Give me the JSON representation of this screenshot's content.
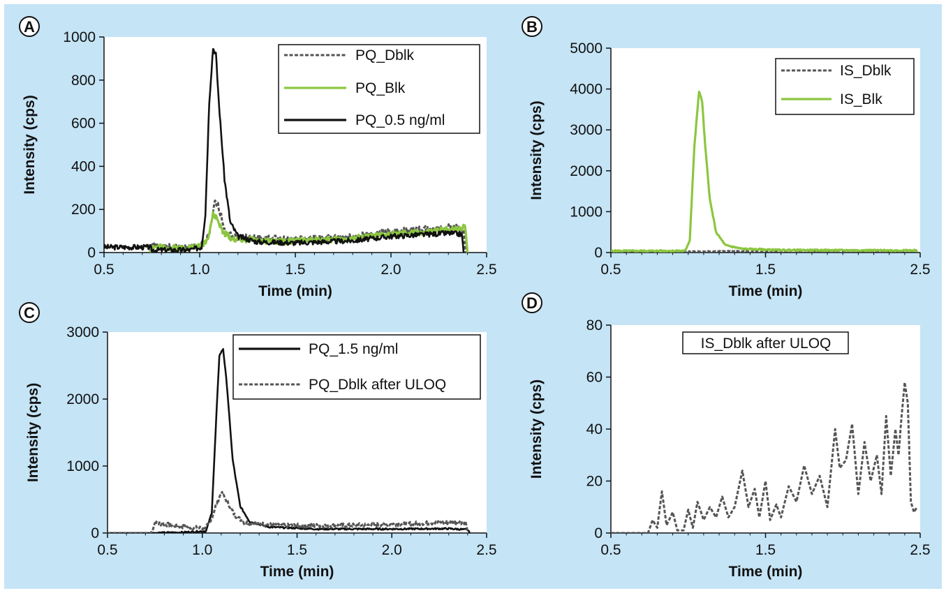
{
  "colors": {
    "background": "#c5e4f6",
    "dark": "#111111",
    "gray_dashed": "#555555",
    "green": "#8cc63f"
  },
  "chart_data": [
    {
      "panel": "A",
      "type": "line",
      "xlabel": "Time (min)",
      "ylabel": "Intensity (cps)",
      "xlim": [
        0.5,
        2.5
      ],
      "ylim": [
        0,
        1000
      ],
      "xticks": [
        "0.5",
        "1.0",
        "1.5",
        "2.0",
        "2.5"
      ],
      "yticks": [
        "0",
        "200",
        "400",
        "600",
        "800",
        "1000"
      ],
      "legend_position": "top-right",
      "series": [
        {
          "name": "PQ_Dblk",
          "style": "dashed",
          "color": "#555555",
          "noise": 16,
          "seed": 1,
          "points": [
            [
              0.74,
              0
            ],
            [
              0.75,
              30
            ],
            [
              0.9,
              20
            ],
            [
              1.0,
              28
            ],
            [
              1.03,
              45
            ],
            [
              1.06,
              120
            ],
            [
              1.08,
              235
            ],
            [
              1.1,
              210
            ],
            [
              1.13,
              110
            ],
            [
              1.17,
              75
            ],
            [
              1.25,
              68
            ],
            [
              1.5,
              60
            ],
            [
              1.8,
              72
            ],
            [
              2.0,
              95
            ],
            [
              2.2,
              110
            ],
            [
              2.35,
              118
            ],
            [
              2.38,
              95
            ],
            [
              2.39,
              0
            ]
          ]
        },
        {
          "name": "PQ_Blk",
          "style": "solid",
          "color": "#8cc63f",
          "noise": 14,
          "seed": 2,
          "points": [
            [
              0.74,
              0
            ],
            [
              0.75,
              25
            ],
            [
              0.9,
              22
            ],
            [
              1.0,
              28
            ],
            [
              1.04,
              60
            ],
            [
              1.07,
              175
            ],
            [
              1.09,
              160
            ],
            [
              1.12,
              95
            ],
            [
              1.17,
              65
            ],
            [
              1.4,
              50
            ],
            [
              1.8,
              65
            ],
            [
              2.0,
              85
            ],
            [
              2.2,
              95
            ],
            [
              2.35,
              115
            ],
            [
              2.39,
              115
            ],
            [
              2.4,
              0
            ]
          ]
        },
        {
          "name": "PQ_0.5 ng/ml",
          "style": "solid",
          "color": "#111111",
          "noise": 12,
          "seed": 3,
          "points": [
            [
              0.5,
              25
            ],
            [
              0.74,
              25
            ],
            [
              0.75,
              12
            ],
            [
              0.95,
              12
            ],
            [
              1.01,
              25
            ],
            [
              1.03,
              180
            ],
            [
              1.05,
              700
            ],
            [
              1.07,
              950
            ],
            [
              1.085,
              920
            ],
            [
              1.1,
              700
            ],
            [
              1.13,
              340
            ],
            [
              1.16,
              140
            ],
            [
              1.2,
              75
            ],
            [
              1.3,
              50
            ],
            [
              1.5,
              45
            ],
            [
              1.8,
              55
            ],
            [
              2.0,
              75
            ],
            [
              2.3,
              90
            ],
            [
              2.37,
              85
            ],
            [
              2.38,
              0
            ]
          ]
        }
      ],
      "legend": [
        "PQ_Dblk",
        "PQ_Blk",
        "PQ_0.5 ng/ml"
      ]
    },
    {
      "panel": "B",
      "type": "line",
      "xlabel": "Time (min)",
      "ylabel": "Intensity (cps)",
      "xlim": [
        0.5,
        2.5
      ],
      "ylim": [
        0,
        5000
      ],
      "xticks": [
        "0.5",
        "1.5",
        "2.5"
      ],
      "yticks": [
        "0",
        "1000",
        "2000",
        "3000",
        "4000",
        "5000"
      ],
      "legend_position": "top-right",
      "series": [
        {
          "name": "IS_Dblk",
          "style": "dashed",
          "color": "#555555",
          "noise": 8,
          "seed": 4,
          "points": [
            [
              0.5,
              20
            ],
            [
              1.0,
              25
            ],
            [
              1.5,
              40
            ],
            [
              2.0,
              45
            ],
            [
              2.48,
              40
            ]
          ]
        },
        {
          "name": "IS_Blk",
          "style": "solid",
          "color": "#8cc63f",
          "noise": 18,
          "seed": 5,
          "points": [
            [
              0.5,
              40
            ],
            [
              0.98,
              40
            ],
            [
              1.01,
              300
            ],
            [
              1.04,
              2600
            ],
            [
              1.07,
              3950
            ],
            [
              1.09,
              3700
            ],
            [
              1.11,
              2600
            ],
            [
              1.14,
              1300
            ],
            [
              1.18,
              500
            ],
            [
              1.24,
              180
            ],
            [
              1.35,
              90
            ],
            [
              1.6,
              60
            ],
            [
              2.0,
              55
            ],
            [
              2.48,
              50
            ]
          ]
        }
      ],
      "legend": [
        "IS_Dblk",
        "IS_Blk"
      ]
    },
    {
      "panel": "C",
      "type": "line",
      "xlabel": "Time (min)",
      "ylabel": "Intensity (cps)",
      "xlim": [
        0.5,
        2.5
      ],
      "ylim": [
        0,
        3000
      ],
      "xticks": [
        "0.5",
        "1.0",
        "1.5",
        "2.0",
        "2.5"
      ],
      "yticks": [
        "0",
        "1000",
        "2000",
        "3000"
      ],
      "legend_position": "top-right",
      "series": [
        {
          "name": "PQ_1.5 ng/ml",
          "style": "solid",
          "color": "#111111",
          "noise": 12,
          "seed": 6,
          "points": [
            [
              0.5,
              0
            ],
            [
              0.74,
              0
            ],
            [
              0.9,
              10
            ],
            [
              1.02,
              30
            ],
            [
              1.05,
              300
            ],
            [
              1.07,
              1500
            ],
            [
              1.09,
              2650
            ],
            [
              1.11,
              2750
            ],
            [
              1.13,
              2200
            ],
            [
              1.16,
              1100
            ],
            [
              1.2,
              400
            ],
            [
              1.25,
              170
            ],
            [
              1.35,
              90
            ],
            [
              1.6,
              60
            ],
            [
              2.0,
              60
            ],
            [
              2.3,
              65
            ],
            [
              2.4,
              50
            ],
            [
              2.41,
              0
            ]
          ]
        },
        {
          "name": "PQ_Dblk after ULOQ",
          "style": "dashed",
          "color": "#555555",
          "noise": 30,
          "seed": 7,
          "points": [
            [
              0.5,
              0
            ],
            [
              0.73,
              0
            ],
            [
              0.75,
              150
            ],
            [
              0.9,
              95
            ],
            [
              1.0,
              70
            ],
            [
              1.04,
              130
            ],
            [
              1.07,
              400
            ],
            [
              1.1,
              600
            ],
            [
              1.13,
              480
            ],
            [
              1.17,
              270
            ],
            [
              1.22,
              160
            ],
            [
              1.4,
              110
            ],
            [
              1.7,
              110
            ],
            [
              2.0,
              130
            ],
            [
              2.2,
              150
            ],
            [
              2.39,
              160
            ],
            [
              2.4,
              0
            ]
          ]
        }
      ],
      "legend": [
        "PQ_1.5 ng/ml",
        "PQ_Dblk after ULOQ"
      ]
    },
    {
      "panel": "D",
      "type": "line",
      "xlabel": "Time (min)",
      "ylabel": "Intensity (cps)",
      "xlim": [
        0.5,
        2.5
      ],
      "ylim": [
        0,
        80
      ],
      "xticks": [
        "0.5",
        "1.5",
        "2.5"
      ],
      "yticks": [
        "0",
        "20",
        "40",
        "60",
        "80"
      ],
      "legend_position": "top-center",
      "series": [
        {
          "name": "IS_Dblk after ULOQ",
          "style": "dashed",
          "color": "#555555",
          "noise": 0,
          "seed": 8,
          "points": [
            [
              0.5,
              0
            ],
            [
              0.74,
              0
            ],
            [
              0.77,
              5
            ],
            [
              0.8,
              2
            ],
            [
              0.83,
              16
            ],
            [
              0.86,
              3
            ],
            [
              0.9,
              8
            ],
            [
              0.93,
              1
            ],
            [
              0.97,
              1
            ],
            [
              1.0,
              9
            ],
            [
              1.03,
              2
            ],
            [
              1.06,
              12
            ],
            [
              1.1,
              5
            ],
            [
              1.14,
              10
            ],
            [
              1.18,
              6
            ],
            [
              1.22,
              14
            ],
            [
              1.26,
              6
            ],
            [
              1.3,
              10
            ],
            [
              1.35,
              24
            ],
            [
              1.39,
              10
            ],
            [
              1.43,
              17
            ],
            [
              1.46,
              6
            ],
            [
              1.5,
              20
            ],
            [
              1.53,
              5
            ],
            [
              1.57,
              11
            ],
            [
              1.6,
              6
            ],
            [
              1.65,
              18
            ],
            [
              1.7,
              12
            ],
            [
              1.75,
              26
            ],
            [
              1.8,
              15
            ],
            [
              1.85,
              22
            ],
            [
              1.9,
              10
            ],
            [
              1.95,
              40
            ],
            [
              1.98,
              25
            ],
            [
              2.02,
              28
            ],
            [
              2.06,
              42
            ],
            [
              2.1,
              15
            ],
            [
              2.14,
              35
            ],
            [
              2.18,
              20
            ],
            [
              2.22,
              30
            ],
            [
              2.25,
              15
            ],
            [
              2.28,
              45
            ],
            [
              2.31,
              22
            ],
            [
              2.34,
              40
            ],
            [
              2.36,
              30
            ],
            [
              2.38,
              45
            ],
            [
              2.4,
              58
            ],
            [
              2.42,
              50
            ],
            [
              2.44,
              12
            ],
            [
              2.46,
              8
            ],
            [
              2.48,
              10
            ]
          ]
        }
      ],
      "legend": [
        "IS_Dblk after ULOQ"
      ]
    }
  ]
}
